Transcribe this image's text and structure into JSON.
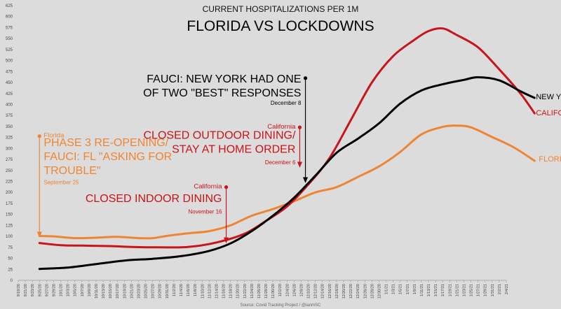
{
  "chart_data": {
    "type": "line",
    "supertitle": "CURRENT HOSPITALIZATIONS PER 1M",
    "title": "FLORIDA VS LOCKDOWNS",
    "source": "Source: Covid Tracking Project  /  @ianmSC",
    "ylim": [
      0,
      625
    ],
    "yticks": [
      0,
      25,
      50,
      75,
      100,
      125,
      150,
      175,
      200,
      225,
      250,
      275,
      300,
      325,
      350,
      375,
      400,
      425,
      450,
      475,
      500,
      525,
      550,
      575,
      600,
      625
    ],
    "grid": false,
    "xticks": [
      "9/19/20",
      "9/21/20",
      "9/23/20",
      "9/25/20",
      "9/27/20",
      "9/29/20",
      "10/1/20",
      "10/3/20",
      "10/5/20",
      "10/7/20",
      "10/9/20",
      "10/11/20",
      "10/13/20",
      "10/15/20",
      "10/17/20",
      "10/19/20",
      "10/21/20",
      "10/23/20",
      "10/25/20",
      "10/27/20",
      "10/29/20",
      "10/31/20",
      "11/2/20",
      "11/4/20",
      "11/6/20",
      "11/8/20",
      "11/10/20",
      "11/12/20",
      "11/14/20",
      "11/16/20",
      "11/18/20",
      "11/20/20",
      "11/22/20",
      "11/24/20",
      "11/26/20",
      "11/28/20",
      "11/30/20",
      "12/2/20",
      "12/4/20",
      "12/6/20",
      "12/8/20",
      "12/10/20",
      "12/12/20",
      "12/14/20",
      "12/16/20",
      "12/18/20",
      "12/20/20",
      "12/22/20",
      "12/24/20",
      "12/26/20",
      "12/28/20",
      "12/30/20",
      "1/1/21",
      "1/3/21",
      "1/5/21",
      "1/7/21",
      "1/9/21",
      "1/11/21",
      "1/13/21",
      "1/15/21",
      "1/17/21",
      "1/19/21",
      "1/21/21",
      "1/23/21",
      "1/25/21",
      "1/27/21",
      "1/29/21",
      "1/31/21",
      "2/2/21",
      "2/4/21"
    ],
    "series": [
      {
        "name": "FLORIDA",
        "color": "#ee8533",
        "points": [
          [
            3,
            101
          ],
          [
            5,
            100
          ],
          [
            8,
            96
          ],
          [
            11,
            97
          ],
          [
            14,
            99
          ],
          [
            17,
            96
          ],
          [
            19,
            96
          ],
          [
            21,
            101
          ],
          [
            24,
            107
          ],
          [
            27,
            112
          ],
          [
            30,
            125
          ],
          [
            33,
            147
          ],
          [
            36,
            162
          ],
          [
            39,
            180
          ],
          [
            42,
            200
          ],
          [
            45,
            212
          ],
          [
            48,
            235
          ],
          [
            51,
            259
          ],
          [
            54,
            292
          ],
          [
            57,
            332
          ],
          [
            60,
            349
          ],
          [
            62,
            352
          ],
          [
            64,
            348
          ],
          [
            67,
            326
          ],
          [
            70,
            303
          ],
          [
            73,
            272
          ]
        ]
      },
      {
        "name": "CALIFORNIA",
        "color": "#c8141a",
        "points": [
          [
            3,
            85
          ],
          [
            6,
            80
          ],
          [
            9,
            79
          ],
          [
            13,
            78
          ],
          [
            16,
            76
          ],
          [
            20,
            75
          ],
          [
            24,
            76
          ],
          [
            28,
            86
          ],
          [
            32,
            106
          ],
          [
            35,
            135
          ],
          [
            38,
            168
          ],
          [
            41,
            218
          ],
          [
            44,
            278
          ],
          [
            47,
            364
          ],
          [
            50,
            450
          ],
          [
            53,
            510
          ],
          [
            56,
            547
          ],
          [
            58,
            567
          ],
          [
            60,
            573
          ],
          [
            62,
            558
          ],
          [
            65,
            530
          ],
          [
            68,
            480
          ],
          [
            71,
            425
          ],
          [
            73,
            380
          ]
        ]
      },
      {
        "name": "NEW YORK",
        "color": "#000000",
        "points": [
          [
            3,
            26
          ],
          [
            7,
            29
          ],
          [
            11,
            37
          ],
          [
            15,
            45
          ],
          [
            19,
            49
          ],
          [
            23,
            55
          ],
          [
            27,
            67
          ],
          [
            30,
            84
          ],
          [
            33,
            112
          ],
          [
            36,
            147
          ],
          [
            39,
            188
          ],
          [
            42,
            238
          ],
          [
            45,
            290
          ],
          [
            48,
            322
          ],
          [
            51,
            357
          ],
          [
            54,
            402
          ],
          [
            57,
            432
          ],
          [
            60,
            446
          ],
          [
            63,
            456
          ],
          [
            65,
            462
          ],
          [
            68,
            455
          ],
          [
            71,
            430
          ],
          [
            73,
            415
          ]
        ]
      }
    ],
    "series_labels": [
      {
        "text": "NEW YORK",
        "color": "#000000",
        "x": 73.2,
        "y": 418
      },
      {
        "text": "CALIFORNIA",
        "color": "#c8141a",
        "x": 73.2,
        "y": 382
      },
      {
        "text": "FLORIDA",
        "color": "#ee8533",
        "x": 73.6,
        "y": 277
      }
    ],
    "annotations": [
      {
        "id": "fl-phase3",
        "color": "#ee8533",
        "label": "Florida",
        "lines": [
          "PHASE 3 RE-OPENING/",
          "FAUCI: FL \"ASKING FOR",
          "TROUBLE\""
        ],
        "date": "September 25",
        "arrow_x": 3,
        "arrow_from_y": 328,
        "arrow_to_y": 103,
        "label_x": 3.6,
        "label_y": 325,
        "text_x": 3.6,
        "text_y": 305,
        "date_x": 3.6,
        "date_y": 219,
        "size": 16
      },
      {
        "id": "ca-indoor",
        "color": "#c8141a",
        "label": "California",
        "lines": [
          "CLOSED INDOOR DINING"
        ],
        "date": "November 16",
        "arrow_x": 29.4,
        "arrow_from_y": 212,
        "arrow_to_y": 90,
        "label_x": 28.8,
        "label_y": 209,
        "text_x": 28.8,
        "text_y": 178,
        "date_x": 28.8,
        "date_y": 152,
        "size": 16,
        "anchor": "end"
      },
      {
        "id": "ca-outdoor",
        "color": "#c8141a",
        "label": "California",
        "lines": [
          "CLOSED OUTDOOR DINING/",
          "STAY AT HOME ORDER"
        ],
        "date": "December 6",
        "arrow_x": 39.8,
        "arrow_from_y": 348,
        "arrow_to_y": 262,
        "label_x": 39.2,
        "label_y": 345,
        "text_x": 39.2,
        "text_y": 322,
        "date_x": 39.2,
        "date_y": 264,
        "size": 16,
        "anchor": "end"
      },
      {
        "id": "ny-fauci",
        "color": "#000000",
        "label": "",
        "lines": [
          "FAUCI: NEW YORK HAD ONE",
          "OF TWO \"BEST\" RESPONSES"
        ],
        "date": "December 8",
        "arrow_x": 40.6,
        "arrow_from_y": 460,
        "arrow_to_y": 227,
        "label_x": 40,
        "label_y": 0,
        "text_x": 40,
        "text_y": 450,
        "date_x": 40,
        "date_y": 399,
        "size": 16,
        "anchor": "end"
      }
    ]
  }
}
